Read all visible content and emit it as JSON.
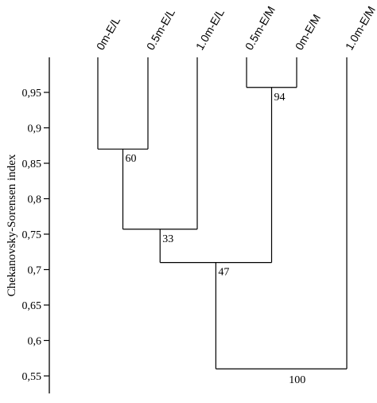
{
  "diagram": {
    "y_axis_label": "Chekanovsky-Sorensen index",
    "y_ticks": [
      "0,95",
      "0,9",
      "0,85",
      "0,8",
      "0,75",
      "0,7",
      "0,65",
      "0,6",
      "0,55"
    ],
    "tick_values": [
      0.95,
      0.9,
      0.85,
      0.8,
      0.75,
      0.7,
      0.65,
      0.6,
      0.55
    ],
    "y_range": [
      0.53,
      1.0
    ],
    "leaves": [
      "0m-E/L",
      "0.5m-E/L",
      "1.0m-E/L",
      "0.5m-E/M",
      "0m-E/M",
      "1.0m-E/M"
    ],
    "nodes": [
      {
        "id": "n60",
        "height": 0.87,
        "children": [
          "0m-E/L",
          "0.5m-E/L"
        ],
        "support": "60"
      },
      {
        "id": "n94",
        "height": 0.957,
        "children": [
          "0.5m-E/M",
          "0m-E/M"
        ],
        "support": "94"
      },
      {
        "id": "n33",
        "height": 0.757,
        "children": [
          "n60",
          "1.0m-E/L"
        ],
        "support": "33"
      },
      {
        "id": "n47",
        "height": 0.71,
        "children": [
          "n33",
          "n94"
        ],
        "support": "47"
      },
      {
        "id": "n100",
        "height": 0.56,
        "children": [
          "n47",
          "1.0m-E/M"
        ],
        "support": "100"
      }
    ],
    "line_color": "#000000"
  }
}
